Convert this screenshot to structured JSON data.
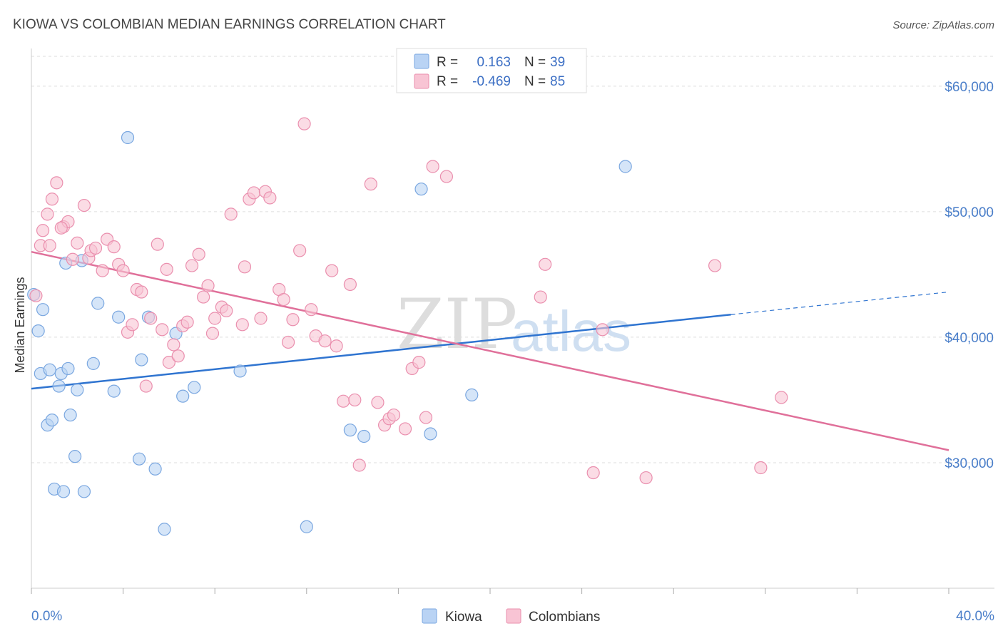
{
  "title": "KIOWA VS COLOMBIAN MEDIAN EARNINGS CORRELATION CHART",
  "source": "Source: ZipAtlas.com",
  "watermark": {
    "zip": "ZIP",
    "atlas": "atlas"
  },
  "colors": {
    "kiowa_fill": "#b9d3f4",
    "kiowa_stroke": "#7aa7e0",
    "kiowa_line": "#2f74d0",
    "col_fill": "#f8c4d4",
    "col_stroke": "#ea8fae",
    "col_line": "#e0709a",
    "grid": "#dddddd",
    "axis_text": "#4a7ec9"
  },
  "legend": {
    "r_label": "R =",
    "n_label": "N =",
    "kiowa": {
      "r": "0.163",
      "n": "39"
    },
    "colombians": {
      "r": "-0.469",
      "n": "85"
    }
  },
  "chart_data": {
    "type": "scatter",
    "title": "KIOWA VS COLOMBIAN MEDIAN EARNINGS CORRELATION CHART",
    "xlabel": "",
    "ylabel": "Median Earnings",
    "xlim": [
      0,
      40
    ],
    "ylim": [
      20000,
      63000
    ],
    "x_tick_labels": [
      "0.0%",
      "40.0%"
    ],
    "y_ticks": [
      30000,
      40000,
      50000,
      60000
    ],
    "y_tick_labels": [
      "$30,000",
      "$40,000",
      "$50,000",
      "$60,000"
    ],
    "grid": true,
    "legend_position": "top-center",
    "series": [
      {
        "name": "Kiowa",
        "points": [
          [
            0.1,
            43400
          ],
          [
            0.3,
            40500
          ],
          [
            0.4,
            37100
          ],
          [
            0.5,
            42200
          ],
          [
            0.7,
            33000
          ],
          [
            0.8,
            37400
          ],
          [
            0.9,
            33400
          ],
          [
            1.0,
            27900
          ],
          [
            1.2,
            36100
          ],
          [
            1.3,
            37100
          ],
          [
            1.4,
            27700
          ],
          [
            1.5,
            45900
          ],
          [
            1.6,
            37500
          ],
          [
            1.7,
            33800
          ],
          [
            1.9,
            30500
          ],
          [
            2.0,
            35800
          ],
          [
            2.2,
            46100
          ],
          [
            2.3,
            27700
          ],
          [
            2.7,
            37900
          ],
          [
            2.9,
            42700
          ],
          [
            3.6,
            35700
          ],
          [
            3.8,
            41600
          ],
          [
            4.2,
            55900
          ],
          [
            4.7,
            30300
          ],
          [
            4.8,
            38200
          ],
          [
            5.1,
            41600
          ],
          [
            5.4,
            29500
          ],
          [
            5.8,
            24700
          ],
          [
            6.3,
            40300
          ],
          [
            6.6,
            35300
          ],
          [
            7.1,
            36000
          ],
          [
            9.1,
            37300
          ],
          [
            13.9,
            32600
          ],
          [
            14.5,
            32100
          ],
          [
            12.0,
            24900
          ],
          [
            17.0,
            51800
          ],
          [
            17.4,
            32300
          ],
          [
            19.2,
            35400
          ],
          [
            25.9,
            53600
          ]
        ],
        "trend": {
          "x": [
            0,
            30.5
          ],
          "y": [
            35900,
            41800
          ]
        },
        "trend_dashed": {
          "x": [
            30.5,
            40
          ],
          "y": [
            41800,
            43600
          ]
        }
      },
      {
        "name": "Colombians",
        "points": [
          [
            0.2,
            43300
          ],
          [
            0.4,
            47300
          ],
          [
            0.5,
            48500
          ],
          [
            0.7,
            49800
          ],
          [
            0.9,
            51000
          ],
          [
            1.1,
            52300
          ],
          [
            1.4,
            48800
          ],
          [
            1.6,
            49200
          ],
          [
            1.8,
            46200
          ],
          [
            2.0,
            47500
          ],
          [
            2.3,
            50500
          ],
          [
            2.5,
            46300
          ],
          [
            2.6,
            46900
          ],
          [
            2.8,
            47100
          ],
          [
            3.1,
            45300
          ],
          [
            3.3,
            47800
          ],
          [
            3.6,
            47200
          ],
          [
            3.8,
            45800
          ],
          [
            4.0,
            45300
          ],
          [
            4.2,
            40400
          ],
          [
            4.4,
            41000
          ],
          [
            4.6,
            43800
          ],
          [
            4.8,
            43600
          ],
          [
            5.0,
            36100
          ],
          [
            5.2,
            41500
          ],
          [
            5.5,
            47400
          ],
          [
            5.7,
            40600
          ],
          [
            5.9,
            45400
          ],
          [
            6.0,
            38000
          ],
          [
            6.2,
            39400
          ],
          [
            6.4,
            38500
          ],
          [
            6.6,
            40900
          ],
          [
            6.8,
            41200
          ],
          [
            7.0,
            45700
          ],
          [
            7.3,
            46600
          ],
          [
            7.5,
            43200
          ],
          [
            7.7,
            44100
          ],
          [
            7.9,
            40300
          ],
          [
            8.0,
            41500
          ],
          [
            8.3,
            42400
          ],
          [
            8.5,
            42100
          ],
          [
            8.7,
            49800
          ],
          [
            9.2,
            41000
          ],
          [
            9.3,
            45600
          ],
          [
            9.5,
            51000
          ],
          [
            9.7,
            51500
          ],
          [
            10.0,
            41500
          ],
          [
            10.2,
            51600
          ],
          [
            10.4,
            51100
          ],
          [
            10.8,
            43800
          ],
          [
            11.0,
            43000
          ],
          [
            11.2,
            39600
          ],
          [
            11.4,
            41400
          ],
          [
            11.7,
            46900
          ],
          [
            11.9,
            57000
          ],
          [
            12.2,
            42200
          ],
          [
            12.4,
            40100
          ],
          [
            12.8,
            39700
          ],
          [
            13.1,
            45300
          ],
          [
            13.3,
            39300
          ],
          [
            13.6,
            34900
          ],
          [
            13.9,
            44200
          ],
          [
            14.1,
            35000
          ],
          [
            14.3,
            29800
          ],
          [
            14.8,
            52200
          ],
          [
            15.1,
            34800
          ],
          [
            15.4,
            33000
          ],
          [
            15.6,
            33500
          ],
          [
            15.8,
            33800
          ],
          [
            16.3,
            32700
          ],
          [
            16.6,
            37500
          ],
          [
            16.9,
            38000
          ],
          [
            17.2,
            33600
          ],
          [
            17.5,
            53600
          ],
          [
            18.1,
            52800
          ],
          [
            22.4,
            45800
          ],
          [
            22.2,
            43200
          ],
          [
            24.5,
            29200
          ],
          [
            24.9,
            40600
          ],
          [
            26.8,
            28800
          ],
          [
            29.8,
            45700
          ],
          [
            31.8,
            29600
          ],
          [
            32.7,
            35200
          ],
          [
            0.8,
            47300
          ],
          [
            1.3,
            48700
          ]
        ],
        "trend": {
          "x": [
            0,
            40
          ],
          "y": [
            46800,
            31000
          ]
        }
      }
    ]
  }
}
